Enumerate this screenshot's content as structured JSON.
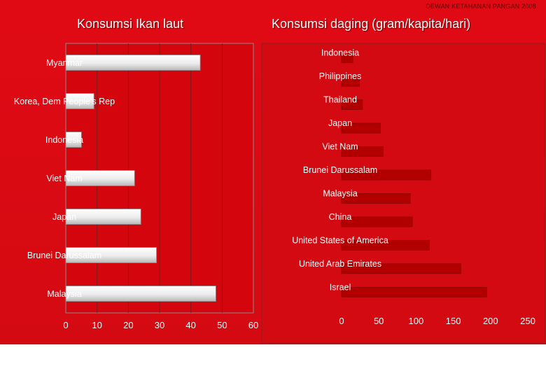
{
  "header": {
    "credit": "DEWAN KETAHANAN PANGAN 2008"
  },
  "chart_data": [
    {
      "type": "bar",
      "orientation": "horizontal",
      "title": "Konsumsi Ikan laut",
      "categories": [
        "Myanmar",
        "Korea, Dem People's Rep",
        "Indonesia",
        "Viet Nam",
        "Japan",
        "Brunei Darussalam",
        "Malaysia"
      ],
      "values": [
        43,
        9,
        5,
        22,
        24,
        29,
        48
      ],
      "xlim": [
        0,
        60
      ],
      "xticks": [
        0,
        10,
        20,
        30,
        40,
        50,
        60
      ],
      "grid": true,
      "legend": "none"
    },
    {
      "type": "bar",
      "orientation": "horizontal",
      "title": "Konsumsi daging (gram/kapita/hari)",
      "categories": [
        "Indonesia",
        "Philippines",
        "Thailand",
        "Japan",
        "Viet Nam",
        "Brunei Darussalam",
        "Malaysia",
        "China",
        "United States of America",
        "United Arab Emirates",
        "Israel"
      ],
      "values": [
        15,
        24,
        28,
        52,
        56,
        120,
        92,
        95,
        118,
        160,
        195
      ],
      "xlim": [
        0,
        250
      ],
      "xticks": [
        0,
        50,
        100,
        150,
        200,
        250
      ],
      "grid": false,
      "legend": "none"
    }
  ]
}
